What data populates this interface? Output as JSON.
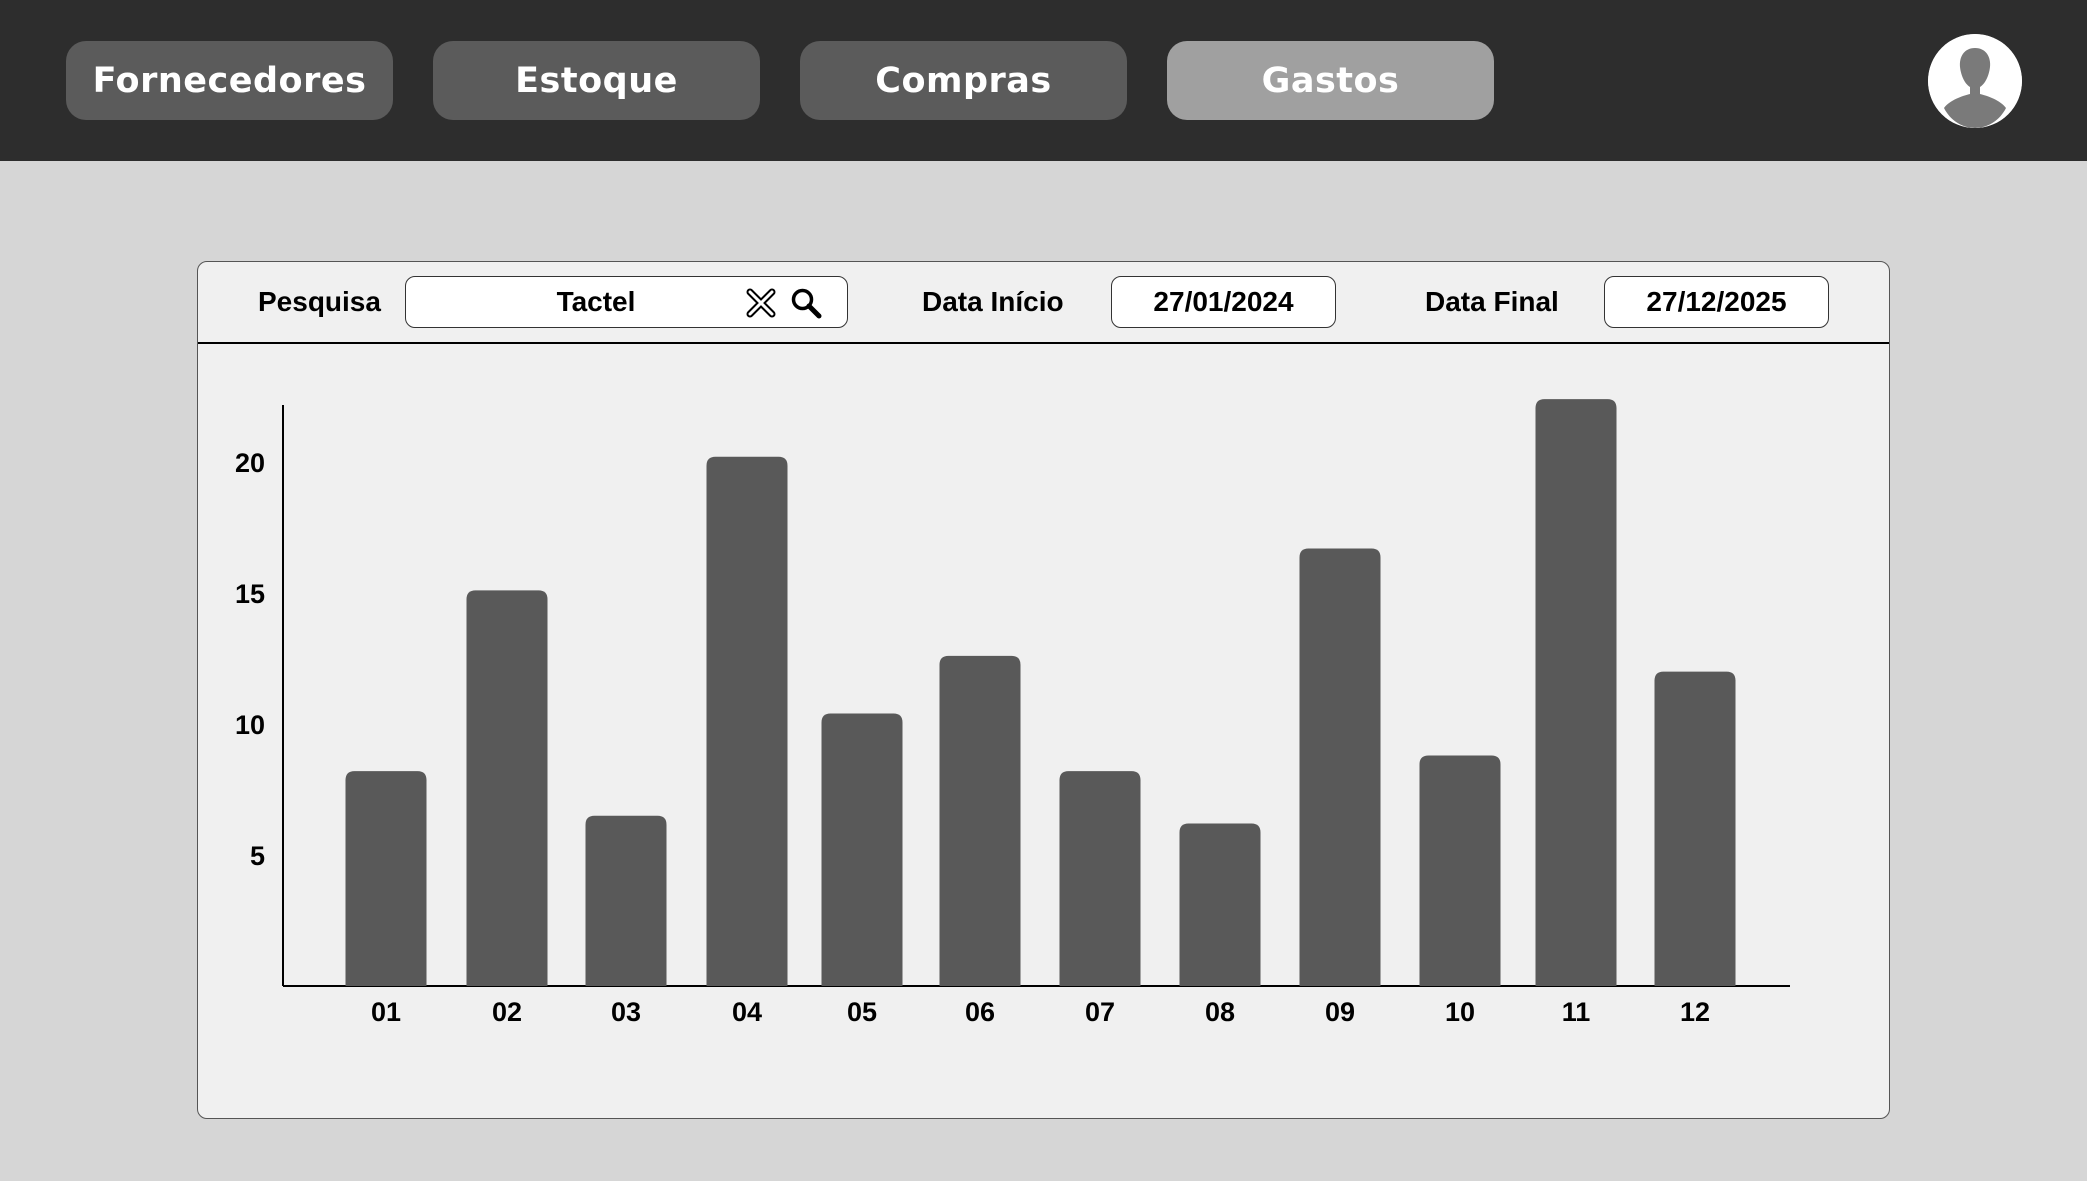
{
  "nav": {
    "items": [
      {
        "label": "Fornecedores"
      },
      {
        "label": "Estoque"
      },
      {
        "label": "Compras"
      },
      {
        "label": "Gastos"
      }
    ],
    "active_index": 3
  },
  "user": {
    "avatar_icon": "user-silhouette-icon"
  },
  "filters": {
    "search_label": "Pesquisa",
    "search_value": "Tactel",
    "clear_icon": "clear-x-icon",
    "search_icon": "search-icon",
    "start_label": "Data Início",
    "start_value": "27/01/2024",
    "end_label": "Data Final",
    "end_value": "27/12/2025"
  },
  "colors": {
    "topbar": "#2d2d2d",
    "nav_button": "#5b5b5b",
    "nav_button_active": "#a0a0a0",
    "bar": "#595959",
    "background": "#d6d6d6",
    "panel": "#f0f0f0"
  },
  "chart_data": {
    "type": "bar",
    "categories": [
      "01",
      "02",
      "03",
      "04",
      "05",
      "06",
      "07",
      "08",
      "09",
      "10",
      "11",
      "12"
    ],
    "values": [
      8.2,
      15.1,
      6.5,
      20.2,
      10.4,
      12.6,
      8.2,
      6.2,
      16.7,
      8.8,
      22.4,
      12.0
    ],
    "yticks": [
      5,
      10,
      15,
      20
    ],
    "ylim": [
      0,
      25.3
    ],
    "grid": false,
    "title": "",
    "xlabel": "",
    "ylabel": ""
  }
}
